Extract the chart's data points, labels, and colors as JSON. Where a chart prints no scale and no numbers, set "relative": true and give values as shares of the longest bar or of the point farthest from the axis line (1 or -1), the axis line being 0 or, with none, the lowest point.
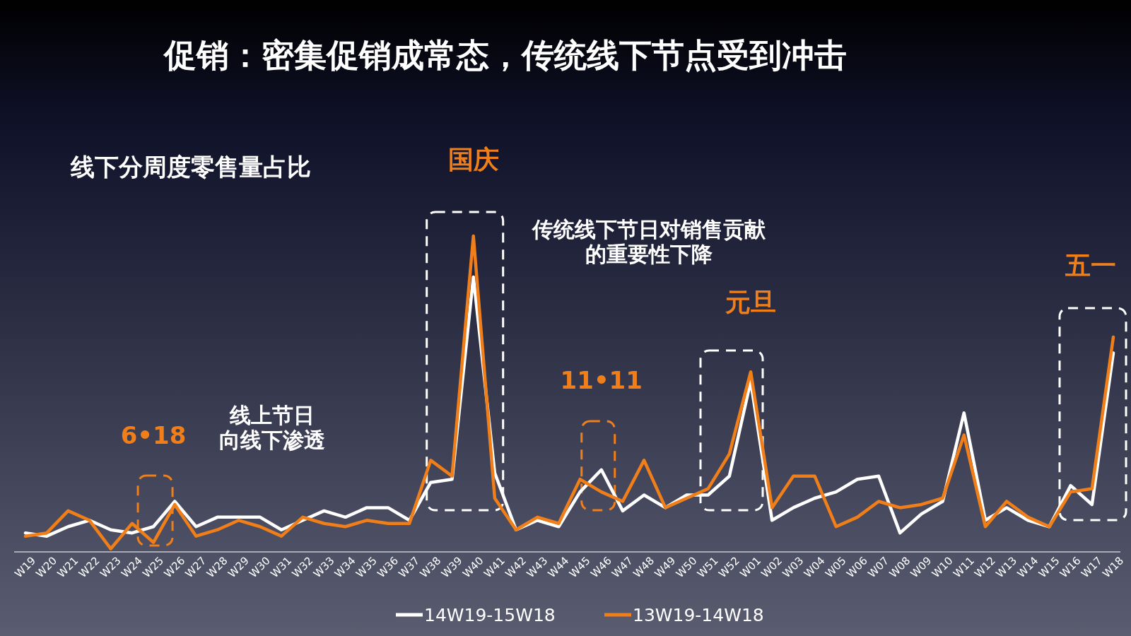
{
  "chart_data": {
    "type": "line",
    "title": "促销：密集促销成常态，传统线下节点受到冲击",
    "subtitle": "线下分周度零售量占比",
    "relative": true,
    "legend": "bottom",
    "categories": [
      "W19",
      "W20",
      "W21",
      "W22",
      "W23",
      "W24",
      "W25",
      "W26",
      "W27",
      "W28",
      "W29",
      "W30",
      "W31",
      "W32",
      "W33",
      "W34",
      "W35",
      "W36",
      "W37",
      "W38",
      "W39",
      "W40",
      "W41",
      "W42",
      "W43",
      "W44",
      "W45",
      "W46",
      "W47",
      "W48",
      "W49",
      "W50",
      "W51",
      "W52",
      "W01",
      "W02",
      "W03",
      "W04",
      "W05",
      "W06",
      "W07",
      "W08",
      "W09",
      "W10",
      "W11",
      "W12",
      "W13",
      "W14",
      "W15",
      "W16",
      "W17",
      "W18"
    ],
    "series": [
      {
        "name": "14W19-15W18",
        "color": "#ffffff",
        "values": [
          0.06,
          0.05,
          0.08,
          0.1,
          0.07,
          0.06,
          0.08,
          0.16,
          0.08,
          0.11,
          0.11,
          0.11,
          0.07,
          0.1,
          0.13,
          0.11,
          0.14,
          0.14,
          0.1,
          0.22,
          0.23,
          0.87,
          0.25,
          0.07,
          0.1,
          0.08,
          0.19,
          0.26,
          0.13,
          0.18,
          0.14,
          0.18,
          0.18,
          0.24,
          0.54,
          0.1,
          0.14,
          0.17,
          0.19,
          0.23,
          0.24,
          0.06,
          0.12,
          0.16,
          0.44,
          0.1,
          0.14,
          0.1,
          0.08,
          0.21,
          0.15,
          0.63
        ]
      },
      {
        "name": "13W19-14W18",
        "color": "#f07f1a",
        "values": [
          0.05,
          0.06,
          0.13,
          0.1,
          0.01,
          0.09,
          0.03,
          0.15,
          0.05,
          0.07,
          0.1,
          0.08,
          0.05,
          0.11,
          0.09,
          0.08,
          0.1,
          0.09,
          0.09,
          0.29,
          0.24,
          1,
          0.17,
          0.07,
          0.11,
          0.09,
          0.23,
          0.19,
          0.16,
          0.29,
          0.14,
          0.17,
          0.2,
          0.31,
          0.57,
          0.14,
          0.24,
          0.24,
          0.08,
          0.11,
          0.16,
          0.14,
          0.15,
          0.17,
          0.37,
          0.08,
          0.16,
          0.11,
          0.08,
          0.19,
          0.2,
          0.68
        ]
      }
    ],
    "annotations": [
      "国庆",
      "6•18",
      "11•11",
      "元旦",
      "五一",
      "线上节日向线下渗透",
      "传统线下节日对销售贡献的重要性下降"
    ]
  }
}
